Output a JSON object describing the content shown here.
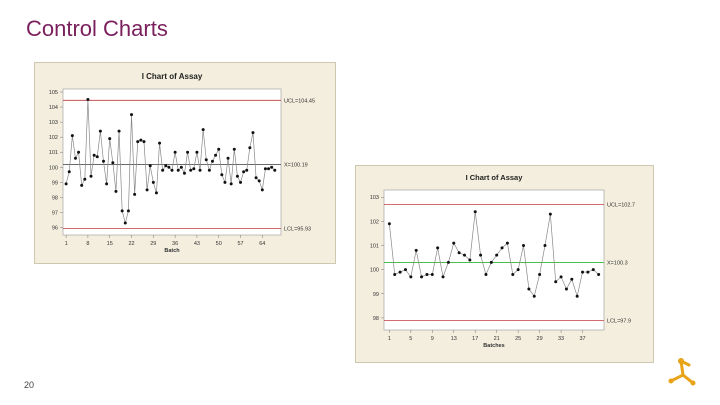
{
  "slide": {
    "title": "Control Charts",
    "page_number": "20"
  },
  "colors": {
    "title": "#7a1f5c",
    "panel_bg": "#f3eedd",
    "limit_line": "#c23b3b",
    "center_line_chart1": "#555555",
    "center_line_chart2": "#33b533",
    "data_line": "#888888",
    "data_point": "#111111",
    "logo": "#e8a317"
  },
  "logo_icon": "molecule-logo-icon",
  "chart_data": [
    {
      "type": "line",
      "title": "I Chart of Assay",
      "xlabel": "Batch",
      "ylabel": "",
      "ylim": [
        95.5,
        105.2
      ],
      "xlim": [
        0,
        70
      ],
      "yticks": [
        105,
        104,
        103,
        102,
        101,
        100,
        99,
        98,
        97,
        96
      ],
      "ytick_labels": [
        "105",
        "104",
        "103",
        "102",
        "101",
        "100",
        "99",
        "98",
        "97",
        "96"
      ],
      "xticks": [
        1,
        8,
        15,
        22,
        29,
        36,
        43,
        50,
        57,
        64
      ],
      "xtick_labels": [
        "1",
        "8",
        "15",
        "22",
        "29",
        "36",
        "43",
        "50",
        "57",
        "64"
      ],
      "grid": false,
      "reference_lines": [
        {
          "label": "UCL=104.45",
          "value": 104.45,
          "kind": "ucl"
        },
        {
          "label": "X=100.19",
          "value": 100.19,
          "kind": "center"
        },
        {
          "label": "LCL=95.93",
          "value": 95.93,
          "kind": "lcl"
        }
      ],
      "x": [
        1,
        2,
        3,
        4,
        5,
        6,
        7,
        8,
        9,
        10,
        11,
        12,
        13,
        14,
        15,
        16,
        17,
        18,
        19,
        20,
        21,
        22,
        23,
        24,
        25,
        26,
        27,
        28,
        29,
        30,
        31,
        32,
        33,
        34,
        35,
        36,
        37,
        38,
        39,
        40,
        41,
        42,
        43,
        44,
        45,
        46,
        47,
        48,
        49,
        50,
        51,
        52,
        53,
        54,
        55,
        56,
        57,
        58,
        59,
        60,
        61,
        62,
        63,
        64,
        65,
        66,
        67,
        68
      ],
      "values": [
        98.9,
        99.7,
        102.1,
        100.6,
        101.0,
        98.8,
        99.2,
        104.5,
        99.4,
        100.8,
        100.7,
        102.4,
        100.4,
        98.9,
        101.9,
        100.3,
        98.4,
        102.4,
        97.1,
        96.3,
        97.1,
        103.5,
        98.2,
        101.7,
        101.8,
        101.7,
        98.5,
        100.1,
        99.0,
        98.3,
        101.6,
        99.8,
        100.1,
        100.0,
        99.8,
        101.0,
        99.8,
        100.0,
        99.6,
        101.0,
        99.8,
        99.9,
        101.0,
        99.8,
        102.5,
        100.5,
        99.8,
        100.4,
        100.8,
        101.2,
        99.5,
        99.0,
        100.6,
        98.9,
        101.2,
        99.4,
        99.0,
        99.7,
        99.8,
        101.3,
        102.3,
        99.3,
        99.1,
        98.5,
        99.9,
        99.9,
        100.0,
        99.8
      ],
      "series": [
        {
          "name": ""
        }
      ]
    },
    {
      "type": "line",
      "title": "I Chart of Assay",
      "xlabel": "Batches",
      "ylabel": "",
      "ylim": [
        97.5,
        103.3
      ],
      "xlim": [
        0,
        41
      ],
      "yticks": [
        103,
        102,
        101,
        100,
        99,
        98
      ],
      "ytick_labels": [
        "103",
        "102",
        "101",
        "100",
        "99",
        "98"
      ],
      "xticks": [
        1,
        5,
        9,
        13,
        17,
        21,
        25,
        29,
        33,
        37
      ],
      "xtick_labels": [
        "1",
        "5",
        "9",
        "13",
        "17",
        "21",
        "25",
        "29",
        "33",
        "37"
      ],
      "grid": false,
      "reference_lines": [
        {
          "label": "UCL=102.7",
          "value": 102.7,
          "kind": "ucl"
        },
        {
          "label": "X=100.3",
          "value": 100.3,
          "kind": "center"
        },
        {
          "label": "LCL=97.9",
          "value": 97.9,
          "kind": "lcl"
        }
      ],
      "x": [
        1,
        2,
        3,
        4,
        5,
        6,
        7,
        8,
        9,
        10,
        11,
        12,
        13,
        14,
        15,
        16,
        17,
        18,
        19,
        20,
        21,
        22,
        23,
        24,
        25,
        26,
        27,
        28,
        29,
        30,
        31,
        32,
        33,
        34,
        35,
        36,
        37,
        38,
        39,
        40
      ],
      "values": [
        101.9,
        99.8,
        99.9,
        100.0,
        99.7,
        100.8,
        99.7,
        99.8,
        99.8,
        100.9,
        99.7,
        100.3,
        101.1,
        100.7,
        100.6,
        100.4,
        102.4,
        100.6,
        99.8,
        100.3,
        100.6,
        100.9,
        101.1,
        99.8,
        100.0,
        101.0,
        99.2,
        98.9,
        99.8,
        101.0,
        102.3,
        99.5,
        99.7,
        99.2,
        99.6,
        98.9,
        99.9,
        99.9,
        100.0,
        99.8
      ],
      "series": [
        {
          "name": ""
        }
      ]
    }
  ]
}
